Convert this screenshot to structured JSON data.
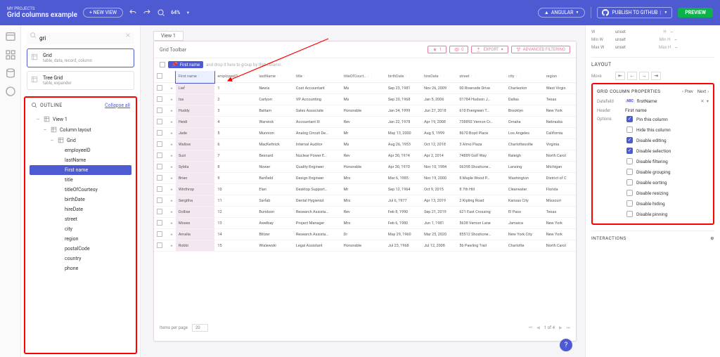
{
  "header": {
    "breadcrumb": "MY PROJECTS",
    "title": "Grid columns example",
    "new_view": "+ NEW VIEW",
    "zoom": "64%",
    "framework": "ANGULAR",
    "publish": "PUBLISH TO GITHUB",
    "preview": "PREVIEW"
  },
  "search": {
    "value": "gri",
    "results": [
      {
        "title": "Grid",
        "sub": "table, data, record, column",
        "selected": true
      },
      {
        "title": "Tree Grid",
        "sub": "table, expander",
        "selected": false
      }
    ]
  },
  "outline": {
    "title": "OUTLINE",
    "collapse": "Collapse all",
    "nodes": [
      {
        "d": 0,
        "label": "View 1",
        "tog": "–",
        "ico": "view"
      },
      {
        "d": 1,
        "label": "Column layout",
        "tog": "–",
        "ico": "col"
      },
      {
        "d": 2,
        "label": "Grid",
        "tog": "–",
        "ico": "grid"
      },
      {
        "d": 3,
        "label": "employeeID"
      },
      {
        "d": 3,
        "label": "lastName"
      },
      {
        "d": 3,
        "label": "First name",
        "sel": true
      },
      {
        "d": 3,
        "label": "title"
      },
      {
        "d": 3,
        "label": "titleOfCourtesy"
      },
      {
        "d": 3,
        "label": "birthDate"
      },
      {
        "d": 3,
        "label": "hireDate"
      },
      {
        "d": 3,
        "label": "street"
      },
      {
        "d": 3,
        "label": "city"
      },
      {
        "d": 3,
        "label": "region"
      },
      {
        "d": 3,
        "label": "postalCode"
      },
      {
        "d": 3,
        "label": "country"
      },
      {
        "d": 3,
        "label": "phone"
      }
    ]
  },
  "canvas": {
    "view_tab": "View 1",
    "toolbar": {
      "title": "Grid Toolbar",
      "pin": "1",
      "hidden": "0",
      "export": "EXPORT",
      "adv": "ADVANCED FILTERING"
    },
    "group_field": "First name",
    "group_hint": "and drop it here to group by that column.",
    "columns": [
      "",
      "",
      "First name",
      "employeeID",
      "lastName",
      "title",
      "titleOfCourt…",
      "birthDate",
      "hireDate",
      "street",
      "city",
      "region"
    ],
    "rows": [
      [
        "Lief",
        "1",
        "Newis",
        "Cost Accountant",
        "Ms",
        "Sep 23, 1981",
        "Nov 26, 2009",
        "00 Riverside Drive",
        "Charleston",
        "West Virgin"
      ],
      [
        "Isa",
        "2",
        "Carlyon",
        "VP Accounting",
        "Ms",
        "Sep 20, 1968",
        "Jan 5, 2006",
        "01784 Hudson J…",
        "Dallas",
        "Texas"
      ],
      [
        "Huddy",
        "3",
        "Battam",
        "Sales Associate",
        "Honorable",
        "Jan 24, 1999",
        "Jun 27, 2018",
        "610 Evergreen T…",
        "Brooklyn",
        "New York"
      ],
      [
        "Heidi",
        "4",
        "Warwick",
        "Accountant III",
        "Rev",
        "Jan 22, 1978",
        "Apr 19, 2008",
        "738892 Vernon Cr…",
        "Omaha",
        "Nebraska"
      ],
      [
        "Jade",
        "5",
        "Munnion",
        "Analog Circuit De…",
        "Mr",
        "May 13, 2000",
        "Aug 5, 1999",
        "8670 Boyd Place",
        "Los Angeles",
        "California"
      ],
      [
        "Wallsw",
        "6",
        "MacKettrick",
        "Internal Auditor",
        "Ms",
        "Aug 26, 1953",
        "Oct 12, 2018",
        "3 Almo Plaza",
        "Charlottesville",
        "Virginia"
      ],
      [
        "Suzi",
        "7",
        "Besnard",
        "Nuclear Power E…",
        "Rev",
        "Apr 30, 1974",
        "Apr 2, 2014",
        "74889 Golf Way",
        "Raleigh",
        "North Carol"
      ],
      [
        "Sybila",
        "8",
        "Nower",
        "Quality Engineer",
        "Honorable",
        "Apr 30, 1970",
        "Nov 10, 1984",
        "06398 Shoshone…",
        "Lansing",
        "Michigan"
      ],
      [
        "Brien",
        "9",
        "Banfield",
        "Design Engineer",
        "Mrs",
        "Mar 6, 1985",
        "Nov 19, 2000",
        "8 Maple Wood P…",
        "Washington",
        "District of C"
      ],
      [
        "Winthrop",
        "10",
        "Elan",
        "Desktop Support…",
        "Mr",
        "Sep 12, 1964",
        "Oct 9, 2015",
        "8 7th Hill",
        "Clearwater",
        "Florida"
      ],
      [
        "Sergitha",
        "11",
        "Sarfab",
        "Dental Hygienist",
        "Mrs",
        "Jul 6, 1977",
        "Apr 13, 2019",
        "2 Kipling Road",
        "Kansas City",
        "Missouri"
      ],
      [
        "Dollise",
        "12",
        "Buridson",
        "Research Assista…",
        "Rev",
        "Feb 8, 1990",
        "Sep 21, 2019",
        "621 East Crossing",
        "El Paso",
        "Texas"
      ],
      [
        "Moses",
        "13",
        "Awelbay",
        "Project Manager",
        "Mrs",
        "Feb 6, 1980",
        "Jun 1, 1981",
        "5638 Vernon Lane",
        "Jamaica",
        "New York"
      ],
      [
        "Amalia",
        "14",
        "Blitzer",
        "Research Assista…",
        "Dr",
        "May 29, 1960",
        "Mar 25, 2020",
        "85512 Shoshone…",
        "New York City",
        "New York"
      ],
      [
        "Robbi",
        "15",
        "Wislewski",
        "Legal Assistant",
        "Honorable",
        "Jul 23, 1968",
        "Jul 12, 2008",
        "56 Pawling Trail",
        "Charlotte",
        "North Carol"
      ]
    ],
    "pager": {
      "label": "Items per page",
      "size": "20",
      "info": "1 of 4"
    }
  },
  "right": {
    "dims": {
      "w_lbl": "W",
      "h_lbl": "H",
      "unset": "unset",
      "dash": "--",
      "minw": "Min W",
      "minh": "Min H",
      "maxw": "Max W",
      "maxh": "Max H"
    },
    "layout": "LAYOUT",
    "move": "Move",
    "props_title": "GRID COLUMN PROPERTIES",
    "prev": "Prev",
    "next": "Next",
    "datafield_lbl": "Datafield",
    "datafield_val": "firstName",
    "header_lbl": "Header",
    "header_val": "First name",
    "options_lbl": "Options",
    "options": [
      {
        "label": "Pin this column",
        "on": true
      },
      {
        "label": "Hide this column",
        "on": false
      },
      {
        "label": "Disable editing",
        "on": true
      },
      {
        "label": "Disable selection",
        "on": true
      },
      {
        "label": "Disable filtering",
        "on": false
      },
      {
        "label": "Disable grouping",
        "on": false
      },
      {
        "label": "Disable sorting",
        "on": false
      },
      {
        "label": "Disable resizing",
        "on": false
      },
      {
        "label": "Disable hiding",
        "on": false
      },
      {
        "label": "Disable pinning",
        "on": false
      }
    ],
    "interactions": "INTERACTIONS"
  }
}
